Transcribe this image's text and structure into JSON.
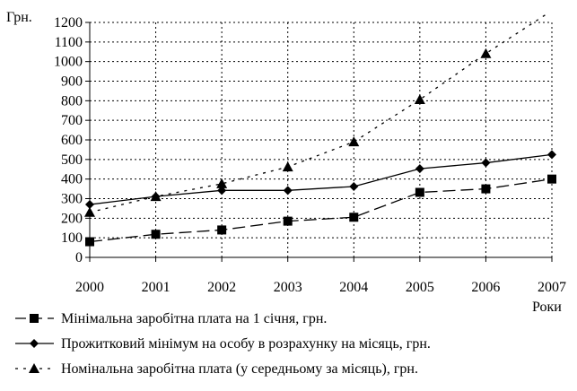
{
  "chart_data": {
    "type": "line",
    "ylabel": "Грн.",
    "xlabel": "Роки",
    "x": [
      "2000",
      "2001",
      "2002",
      "2003",
      "2004",
      "2005",
      "2006",
      "2007"
    ],
    "ylim": [
      0,
      1200
    ],
    "yticks": [
      0,
      100,
      200,
      300,
      400,
      500,
      600,
      700,
      800,
      900,
      1000,
      1100,
      1200
    ],
    "grid": "dotted",
    "legend_placement": "bottom",
    "series": [
      {
        "name": "Мінімальна заробітна плата на 1 січня, грн.",
        "marker": "square",
        "dash": "long-dash",
        "values": [
          80,
          118,
          140,
          185,
          205,
          332,
          350,
          400
        ]
      },
      {
        "name": "Прожитковий мінімум на особу в розрахунку на місяць, грн.",
        "marker": "diamond",
        "dash": "solid",
        "values": [
          270,
          311,
          342,
          342,
          362,
          453,
          483,
          525
        ]
      },
      {
        "name": "Номінальна заробітна плата (у середньому за місяць), грн.",
        "marker": "triangle",
        "dash": "dotted",
        "values": [
          230,
          311,
          376,
          462,
          590,
          806,
          1041,
          1351
        ]
      }
    ]
  }
}
